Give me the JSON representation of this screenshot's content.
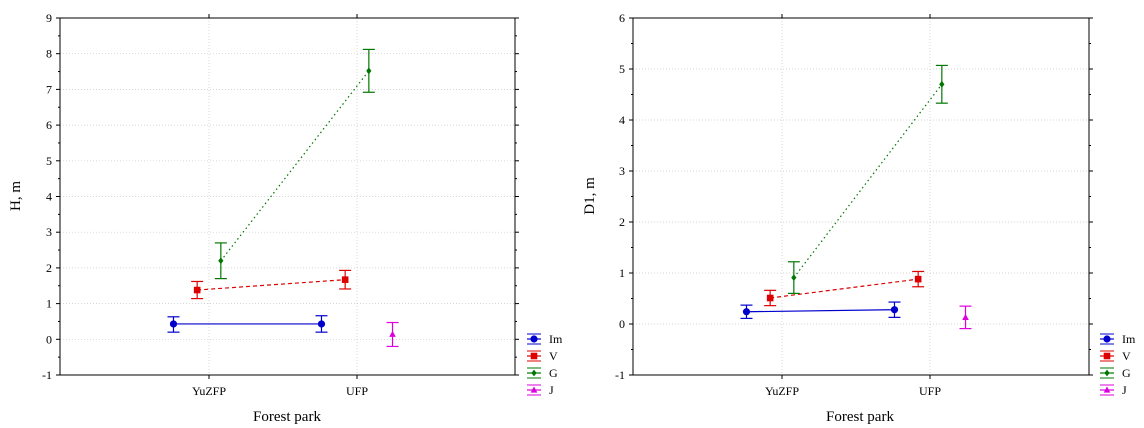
{
  "chart_data": [
    {
      "type": "line",
      "xlabel": "Forest park",
      "ylabel": "H, m",
      "ylim": [
        -1,
        9
      ],
      "yticks": [
        -1,
        0,
        1,
        2,
        3,
        4,
        5,
        6,
        7,
        8,
        9
      ],
      "categories": [
        "YuZFP",
        "UFP"
      ],
      "grid": true,
      "legend_position": "bottom-right",
      "series": [
        {
          "name": "Im",
          "color": "#0000cc",
          "dash": "solid",
          "marker": "circle",
          "x": [
            -0.24,
            0.76
          ],
          "y": [
            0.43,
            0.43
          ],
          "low": [
            0.2,
            0.2
          ],
          "high": [
            0.63,
            0.66
          ],
          "connect": true
        },
        {
          "name": "V",
          "color": "#dd0000",
          "dash": "dashed",
          "marker": "square",
          "x": [
            -0.08,
            0.92
          ],
          "y": [
            1.38,
            1.67
          ],
          "low": [
            1.14,
            1.41
          ],
          "high": [
            1.62,
            1.93
          ],
          "connect": true
        },
        {
          "name": "G",
          "color": "#007700",
          "dash": "dotted",
          "marker": "diamond",
          "x": [
            0.08,
            1.08
          ],
          "y": [
            2.2,
            7.52
          ],
          "low": [
            1.7,
            6.92
          ],
          "high": [
            2.7,
            8.12
          ],
          "connect": true
        },
        {
          "name": "J",
          "color": "#dd00dd",
          "dash": "solid",
          "marker": "triangle",
          "x": [
            1.24
          ],
          "y": [
            0.14
          ],
          "low": [
            -0.2
          ],
          "high": [
            0.47
          ],
          "connect": false
        }
      ]
    },
    {
      "type": "line",
      "xlabel": "Forest park",
      "ylabel": "D1, m",
      "ylim": [
        -1,
        6
      ],
      "yticks": [
        -1,
        0,
        1,
        2,
        3,
        4,
        5,
        6
      ],
      "categories": [
        "YuZFP",
        "UFP"
      ],
      "grid": true,
      "legend_position": "bottom-right",
      "series": [
        {
          "name": "Im",
          "color": "#0000cc",
          "dash": "solid",
          "marker": "circle",
          "x": [
            -0.24,
            0.76
          ],
          "y": [
            0.24,
            0.28
          ],
          "low": [
            0.11,
            0.13
          ],
          "high": [
            0.37,
            0.43
          ],
          "connect": true
        },
        {
          "name": "V",
          "color": "#dd0000",
          "dash": "dashed",
          "marker": "square",
          "x": [
            -0.08,
            0.92
          ],
          "y": [
            0.51,
            0.88
          ],
          "low": [
            0.36,
            0.73
          ],
          "high": [
            0.66,
            1.03
          ],
          "connect": true
        },
        {
          "name": "G",
          "color": "#007700",
          "dash": "dotted",
          "marker": "diamond",
          "x": [
            0.08,
            1.08
          ],
          "y": [
            0.91,
            4.7
          ],
          "low": [
            0.6,
            4.33
          ],
          "high": [
            1.22,
            5.07
          ],
          "connect": true
        },
        {
          "name": "J",
          "color": "#dd00dd",
          "dash": "solid",
          "marker": "triangle",
          "x": [
            1.24
          ],
          "y": [
            0.13
          ],
          "low": [
            -0.09
          ],
          "high": [
            0.35
          ],
          "connect": false
        }
      ]
    }
  ]
}
